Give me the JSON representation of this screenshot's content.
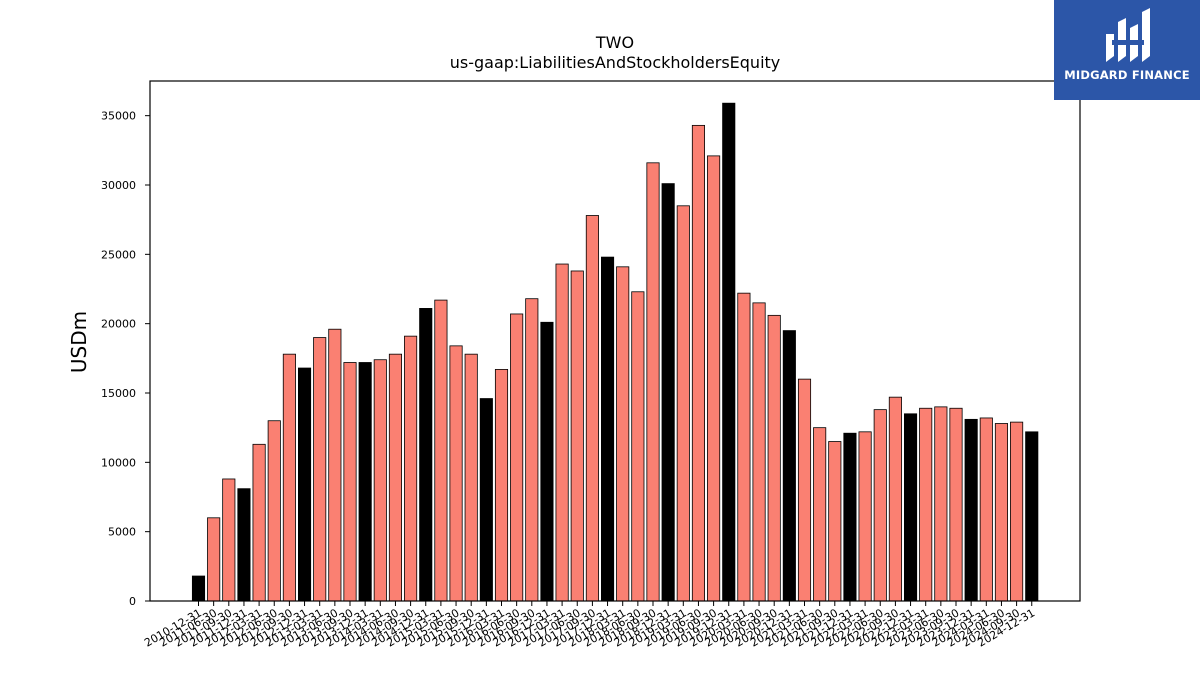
{
  "logo": {
    "text": "MIDGARD FINANCE",
    "icon": "midgard-logo-mark",
    "bg": "#2c56a8"
  },
  "chart_data": {
    "type": "bar",
    "title": "TWO",
    "subtitle": "us-gaap:LiabilitiesAndStockholdersEquity",
    "ylabel": "USDm",
    "xlabel": "",
    "ylim": [
      0,
      37500
    ],
    "yticks": [
      0,
      5000,
      10000,
      15000,
      20000,
      25000,
      30000,
      35000
    ],
    "grid": false,
    "colors": {
      "quarter": "#fa8072",
      "year_end": "#000000"
    },
    "categories": [
      "2010-12-31",
      "2011-06-30",
      "2011-09-30",
      "2011-12-31",
      "2012-03-31",
      "2012-06-30",
      "2012-09-30",
      "2012-12-31",
      "2013-03-31",
      "2013-06-30",
      "2013-09-30",
      "2013-12-31",
      "2014-03-31",
      "2014-06-30",
      "2014-09-30",
      "2014-12-31",
      "2015-03-31",
      "2015-06-30",
      "2015-09-30",
      "2015-12-31",
      "2016-03-31",
      "2016-06-30",
      "2016-09-30",
      "2016-12-31",
      "2017-03-31",
      "2017-06-30",
      "2017-09-30",
      "2017-12-31",
      "2018-03-31",
      "2018-06-30",
      "2018-09-30",
      "2018-12-31",
      "2019-03-31",
      "2019-06-30",
      "2019-09-30",
      "2019-12-31",
      "2020-03-31",
      "2020-06-30",
      "2020-09-30",
      "2020-12-31",
      "2021-03-31",
      "2021-06-30",
      "2021-09-30",
      "2021-12-31",
      "2022-03-31",
      "2022-06-30",
      "2022-09-30",
      "2022-12-31",
      "2023-03-31",
      "2023-06-30",
      "2023-09-30",
      "2023-12-31",
      "2024-03-31",
      "2024-06-30",
      "2024-09-30",
      "2024-12-31"
    ],
    "values": [
      1800,
      6000,
      8800,
      8100,
      11300,
      13000,
      17800,
      16800,
      19000,
      19600,
      17200,
      17200,
      17400,
      17800,
      19100,
      21100,
      21700,
      18400,
      17800,
      14600,
      16700,
      20700,
      21800,
      20100,
      24300,
      23800,
      27800,
      24800,
      24100,
      22300,
      31600,
      30100,
      28500,
      34300,
      32100,
      35900,
      22200,
      21500,
      20600,
      19500,
      16000,
      12500,
      11500,
      12100,
      12200,
      13800,
      14700,
      13500,
      13900,
      14000,
      13900,
      13100,
      13200,
      12800,
      12900,
      12200
    ]
  }
}
